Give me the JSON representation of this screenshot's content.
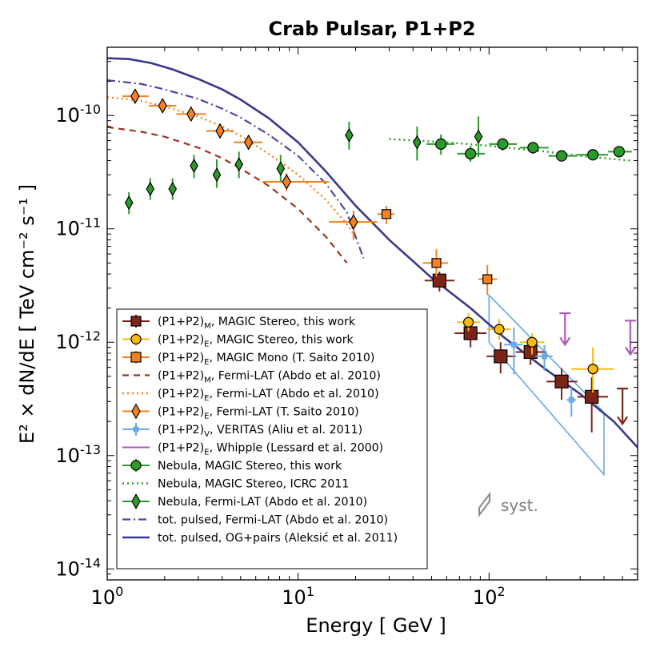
{
  "chart_data": {
    "type": "scatter",
    "title": "Crab Pulsar, P1+P2",
    "xlabel": "Energy [ GeV ]",
    "ylabel": "E² × dN/dE [ TeV cm⁻² s⁻¹ ]",
    "xscale": "log",
    "yscale": "log",
    "xlim": [
      1,
      600
    ],
    "ylim": [
      8e-15,
      4e-10
    ],
    "x_ticks": [
      {
        "value": 1,
        "base": "10",
        "exp": "0"
      },
      {
        "value": 10,
        "base": "10",
        "exp": "1"
      },
      {
        "value": 100,
        "base": "10",
        "exp": "2"
      }
    ],
    "y_ticks": [
      {
        "value": 1e-14,
        "base": "10",
        "exp": "-14"
      },
      {
        "value": 1e-13,
        "base": "10",
        "exp": "-13"
      },
      {
        "value": 1e-12,
        "base": "10",
        "exp": "-12"
      },
      {
        "value": 1e-11,
        "base": "10",
        "exp": "-11"
      },
      {
        "value": 1e-10,
        "base": "10",
        "exp": "-10"
      }
    ],
    "syst_label": "syst.",
    "series": [
      {
        "name": "(P1+P2)_M, MAGIC Stereo, this work",
        "label_main": "(P1+P2)",
        "label_sub": "M",
        "label_rest": ", MAGIC Stereo, this work",
        "kind": "points",
        "marker": "square",
        "color": "#7b2418",
        "size": 16,
        "points": [
          {
            "x": 55,
            "y": 3.5e-12,
            "xlo": 46,
            "xhi": 66,
            "ylo": 2.8e-12,
            "yhi": 4.2e-12
          },
          {
            "x": 80,
            "y": 1.2e-12,
            "xlo": 66,
            "xhi": 97,
            "ylo": 9e-13,
            "yhi": 1.55e-12
          },
          {
            "x": 115,
            "y": 7.5e-13,
            "xlo": 97,
            "xhi": 138,
            "ylo": 5.3e-13,
            "yhi": 1e-12
          },
          {
            "x": 165,
            "y": 8.2e-13,
            "xlo": 138,
            "xhi": 200,
            "ylo": 6.3e-13,
            "yhi": 1.05e-12
          },
          {
            "x": 240,
            "y": 4.5e-13,
            "xlo": 200,
            "xhi": 290,
            "ylo": 3.1e-13,
            "yhi": 5.9e-13
          },
          {
            "x": 345,
            "y": 3.3e-13,
            "xlo": 290,
            "xhi": 420,
            "ylo": 1.6e-13,
            "yhi": 4.9e-13
          }
        ],
        "upper_limits": [
          {
            "x": 500,
            "y": 3.9e-13,
            "y_arrow": 1.9e-13
          }
        ]
      },
      {
        "name": "(P1+P2)_E, MAGIC Stereo, this work",
        "label_main": "(P1+P2)",
        "label_sub": "E",
        "label_rest": ", MAGIC Stereo, this work",
        "kind": "points",
        "marker": "circle",
        "color": "#f7ba13",
        "size": 12,
        "points": [
          {
            "x": 78,
            "y": 1.5e-12,
            "xlo": 68,
            "xhi": 90,
            "ylo": 1.25e-12,
            "yhi": 1.8e-12
          },
          {
            "x": 113,
            "y": 1.3e-12,
            "xlo": 98,
            "xhi": 130,
            "ylo": 1.05e-12,
            "yhi": 1.6e-12
          },
          {
            "x": 168,
            "y": 1e-12,
            "xlo": 145,
            "xhi": 195,
            "ylo": 7.8e-13,
            "yhi": 1.2e-12
          },
          {
            "x": 350,
            "y": 5.8e-13,
            "xlo": 270,
            "xhi": 450,
            "ylo": 3.6e-13,
            "yhi": 9e-13
          }
        ]
      },
      {
        "name": "(P1+P2)_E, MAGIC Mono (T. Saito 2010)",
        "label_main": "(P1+P2)",
        "label_sub": "E",
        "label_rest": ", MAGIC Mono (T. Saito 2010)",
        "kind": "points",
        "marker": "square",
        "color": "#f5821f",
        "size": 11,
        "points": [
          {
            "x": 29,
            "y": 1.35e-11,
            "xlo": 26,
            "xhi": 32,
            "ylo": 1.1e-11,
            "yhi": 1.6e-11
          },
          {
            "x": 53,
            "y": 5e-12,
            "xlo": 45,
            "xhi": 61,
            "ylo": 3.8e-12,
            "yhi": 6.6e-12
          },
          {
            "x": 98,
            "y": 3.6e-12,
            "xlo": 88,
            "xhi": 110,
            "ylo": 2.6e-12,
            "yhi": 4.8e-12
          }
        ]
      },
      {
        "name": "(P1+P2)_M, Fermi-LAT (Abdo et al. 2010)",
        "label_main": "(P1+P2)",
        "label_sub": "M",
        "label_rest": ", Fermi-LAT (Abdo et al. 2010)",
        "kind": "line",
        "dash": "8,6",
        "color": "#9b3520",
        "width": 2.2,
        "points": [
          {
            "x": 1.0,
            "y": 7.9e-11
          },
          {
            "x": 1.5,
            "y": 7.2e-11
          },
          {
            "x": 2.0,
            "y": 6.5e-11
          },
          {
            "x": 3.0,
            "y": 5.2e-11
          },
          {
            "x": 4.0,
            "y": 4.2e-11
          },
          {
            "x": 5.0,
            "y": 3.4e-11
          },
          {
            "x": 7.0,
            "y": 2.4e-11
          },
          {
            "x": 10.0,
            "y": 1.5e-11
          },
          {
            "x": 14.0,
            "y": 8.5e-12
          },
          {
            "x": 18.0,
            "y": 5e-12
          }
        ]
      },
      {
        "name": "(P1+P2)_E, Fermi-LAT (Abdo et al. 2010)",
        "label_main": "(P1+P2)",
        "label_sub": "E",
        "label_rest": ", Fermi-LAT (Abdo et al. 2010)",
        "kind": "line",
        "dash": "2,4",
        "color": "#f5821f",
        "width": 2.4,
        "points": [
          {
            "x": 1.0,
            "y": 1.45e-10
          },
          {
            "x": 1.5,
            "y": 1.35e-10
          },
          {
            "x": 2.0,
            "y": 1.2e-10
          },
          {
            "x": 3.0,
            "y": 9.8e-11
          },
          {
            "x": 4.0,
            "y": 8e-11
          },
          {
            "x": 5.0,
            "y": 6.6e-11
          },
          {
            "x": 7.0,
            "y": 4.6e-11
          },
          {
            "x": 10.0,
            "y": 3e-11
          },
          {
            "x": 14.0,
            "y": 1.8e-11
          },
          {
            "x": 18.0,
            "y": 1.1e-11
          },
          {
            "x": 20.0,
            "y": 8.5e-12
          }
        ]
      },
      {
        "name": "(P1+P2)_E, Fermi-LAT (T. Saito 2010)",
        "label_main": "(P1+P2)",
        "label_sub": "E",
        "label_rest": ", Fermi-LAT (T. Saito 2010)",
        "kind": "points",
        "marker": "diamond",
        "color": "#f5821f",
        "size": 12,
        "points": [
          {
            "x": 1.4,
            "y": 1.48e-10,
            "xlo": 1.2,
            "xhi": 1.65,
            "ylo": 1.28e-10,
            "yhi": 1.7e-10
          },
          {
            "x": 1.95,
            "y": 1.22e-10,
            "xlo": 1.65,
            "xhi": 2.3,
            "ylo": 1.07e-10,
            "yhi": 1.38e-10
          },
          {
            "x": 2.75,
            "y": 1.03e-10,
            "xlo": 2.3,
            "xhi": 3.3,
            "ylo": 9e-11,
            "yhi": 1.17e-10
          },
          {
            "x": 3.9,
            "y": 7.3e-11,
            "xlo": 3.3,
            "xhi": 4.6,
            "ylo": 6.3e-11,
            "yhi": 8.4e-11
          },
          {
            "x": 5.5,
            "y": 5.8e-11,
            "xlo": 4.6,
            "xhi": 6.5,
            "ylo": 5e-11,
            "yhi": 6.7e-11
          },
          {
            "x": 8.7,
            "y": 2.6e-11,
            "xlo": 6.5,
            "xhi": 14.5,
            "ylo": 2.15e-11,
            "yhi": 3.1e-11
          },
          {
            "x": 19.5,
            "y": 1.15e-11,
            "xlo": 14.5,
            "xhi": 26,
            "ylo": 8e-12,
            "yhi": 1.45e-11
          }
        ]
      },
      {
        "name": "(P1+P2)_V, VERITAS (Aliu et al. 2011)",
        "label_main": "(P1+P2)",
        "label_sub": "V",
        "label_rest": ", VERITAS (Aliu et al. 2011)",
        "kind": "points",
        "marker": "smallsquare",
        "color": "#6aa8e8",
        "size": 7,
        "points": [
          {
            "x": 135,
            "y": 9.5e-13,
            "xlo": 120,
            "xhi": 150,
            "ylo": 5.2e-13,
            "yhi": 1.35e-12
          },
          {
            "x": 195,
            "y": 7.5e-13,
            "xlo": 175,
            "xhi": 215,
            "ylo": 5.6e-13,
            "yhi": 9.4e-13
          },
          {
            "x": 270,
            "y": 3.1e-13,
            "xlo": 255,
            "xhi": 285,
            "ylo": 2.2e-13,
            "yhi": 4e-13
          }
        ],
        "band": [
          {
            "x": 100,
            "y": 2.6e-12
          },
          {
            "x": 400,
            "y": 2.4e-13
          },
          {
            "x": 400,
            "y": 6.8e-14
          },
          {
            "x": 100,
            "y": 1e-12
          }
        ]
      },
      {
        "name": "(P1+P2)_E, Whipple (Lessard et al. 2000)",
        "label_main": "(P1+P2)",
        "label_sub": "E",
        "label_rest": ", Whipple (Lessard et al. 2000)",
        "kind": "limits",
        "color": "#b05ab8",
        "upper_limits": [
          {
            "x": 250,
            "y": 1.8e-12,
            "y_arrow": 9.5e-13
          },
          {
            "x": 550,
            "y": 1.55e-12,
            "y_arrow": 7.8e-13
          }
        ]
      },
      {
        "name": "Nebula, MAGIC Stereo, this work",
        "label_main": "Nebula, MAGIC Stereo, this work",
        "label_sub": "",
        "label_rest": "",
        "kind": "points",
        "marker": "circle",
        "color": "#2b9a2b",
        "size": 13,
        "points": [
          {
            "x": 56,
            "y": 5.6e-11,
            "xlo": 47,
            "xhi": 66,
            "ylo": 4.5e-11,
            "yhi": 6.8e-11
          },
          {
            "x": 80,
            "y": 4.6e-11,
            "xlo": 68,
            "xhi": 95,
            "ylo": 3.9e-11,
            "yhi": 5.4e-11
          },
          {
            "x": 118,
            "y": 5.6e-11,
            "xlo": 100,
            "xhi": 140,
            "ylo": 4.9e-11,
            "yhi": 6.3e-11
          },
          {
            "x": 170,
            "y": 5.2e-11,
            "xlo": 145,
            "xhi": 205,
            "ylo": 4.6e-11,
            "yhi": 5.8e-11
          },
          {
            "x": 240,
            "y": 4.4e-11,
            "xlo": 205,
            "xhi": 290,
            "ylo": 4e-11,
            "yhi": 4.9e-11
          },
          {
            "x": 350,
            "y": 4.5e-11,
            "xlo": 290,
            "xhi": 420,
            "ylo": 4.1e-11,
            "yhi": 4.9e-11
          },
          {
            "x": 480,
            "y": 4.8e-11,
            "xlo": 420,
            "xhi": 560,
            "ylo": 4.4e-11,
            "yhi": 5.2e-11
          }
        ]
      },
      {
        "name": "Nebula, MAGIC Stereo, ICRC 2011",
        "label_main": "Nebula, MAGIC Stereo, ICRC 2011",
        "label_sub": "",
        "label_rest": "",
        "kind": "line",
        "dash": "2,4",
        "color": "#2b9a2b",
        "width": 2.4,
        "points": [
          {
            "x": 30,
            "y": 6.2e-11
          },
          {
            "x": 60,
            "y": 5.8e-11
          },
          {
            "x": 100,
            "y": 5.4e-11
          },
          {
            "x": 200,
            "y": 4.8e-11
          },
          {
            "x": 300,
            "y": 4.4e-11
          },
          {
            "x": 550,
            "y": 4e-11
          }
        ]
      },
      {
        "name": "Nebula, Fermi-LAT (Abdo et al. 2010)",
        "label_main": "Nebula, Fermi-LAT (Abdo et al. 2010)",
        "label_sub": "",
        "label_rest": "",
        "kind": "points",
        "marker": "diamond",
        "color": "#2b9a2b",
        "size": 11,
        "points": [
          {
            "x": 1.3,
            "y": 1.7e-11,
            "ylo": 1.35e-11,
            "yhi": 2.1e-11
          },
          {
            "x": 1.68,
            "y": 2.25e-11,
            "ylo": 1.8e-11,
            "yhi": 2.8e-11
          },
          {
            "x": 2.2,
            "y": 2.25e-11,
            "ylo": 1.8e-11,
            "yhi": 2.8e-11
          },
          {
            "x": 2.85,
            "y": 3.6e-11,
            "ylo": 2.8e-11,
            "yhi": 4.5e-11
          },
          {
            "x": 3.75,
            "y": 3e-11,
            "ylo": 2.3e-11,
            "yhi": 4.1e-11
          },
          {
            "x": 4.9,
            "y": 3.7e-11,
            "ylo": 2.8e-11,
            "yhi": 4.8e-11
          },
          {
            "x": 8.1,
            "y": 3.4e-11,
            "ylo": 2.6e-11,
            "yhi": 4.5e-11
          },
          {
            "x": 18.5,
            "y": 6.7e-11,
            "ylo": 5e-11,
            "yhi": 8.8e-11
          },
          {
            "x": 42,
            "y": 5.8e-11,
            "ylo": 4e-11,
            "yhi": 8e-11
          },
          {
            "x": 88,
            "y": 6.5e-11,
            "ylo": 4.3e-11,
            "yhi": 9.8e-11
          }
        ]
      },
      {
        "name": "tot. pulsed, Fermi-LAT (Abdo et al. 2010)",
        "label_main": "tot. pulsed, Fermi-LAT (Abdo et al. 2010)",
        "label_sub": "",
        "label_rest": "",
        "kind": "line",
        "dash": "10,4,2,4",
        "color": "#4a4aa0",
        "width": 2.2,
        "points": [
          {
            "x": 1.0,
            "y": 2.05e-10
          },
          {
            "x": 1.5,
            "y": 1.9e-10
          },
          {
            "x": 2.0,
            "y": 1.7e-10
          },
          {
            "x": 3.0,
            "y": 1.4e-10
          },
          {
            "x": 4.0,
            "y": 1.15e-10
          },
          {
            "x": 5.0,
            "y": 9.6e-11
          },
          {
            "x": 7.0,
            "y": 6.8e-11
          },
          {
            "x": 10.0,
            "y": 4.4e-11
          },
          {
            "x": 14.0,
            "y": 2.5e-11
          },
          {
            "x": 18.0,
            "y": 1.4e-11
          },
          {
            "x": 22.0,
            "y": 5.5e-12
          }
        ]
      },
      {
        "name": "tot. pulsed, OG+pairs (Aleksić et al. 2011)",
        "label_main": "tot. pulsed, OG+pairs (Aleksić et al. 2011)",
        "label_sub": "",
        "label_rest": "",
        "kind": "line",
        "dash": "",
        "color": "#3a3a8c",
        "width": 2.6,
        "points": [
          {
            "x": 1.0,
            "y": 3.2e-10
          },
          {
            "x": 1.3,
            "y": 3.15e-10
          },
          {
            "x": 1.7,
            "y": 2.9e-10
          },
          {
            "x": 2.2,
            "y": 2.55e-10
          },
          {
            "x": 3.0,
            "y": 2.1e-10
          },
          {
            "x": 4.0,
            "y": 1.7e-10
          },
          {
            "x": 5.0,
            "y": 1.38e-10
          },
          {
            "x": 7.0,
            "y": 9.5e-11
          },
          {
            "x": 10.0,
            "y": 5.8e-11
          },
          {
            "x": 14.0,
            "y": 3.2e-11
          },
          {
            "x": 20.0,
            "y": 1.6e-11
          },
          {
            "x": 30.0,
            "y": 8e-12
          },
          {
            "x": 50.0,
            "y": 3.7e-12
          },
          {
            "x": 80.0,
            "y": 2e-12
          },
          {
            "x": 120.0,
            "y": 1.1e-12
          },
          {
            "x": 200.0,
            "y": 5.7e-13
          },
          {
            "x": 300.0,
            "y": 3.5e-13
          },
          {
            "x": 450.0,
            "y": 2e-13
          },
          {
            "x": 600.0,
            "y": 1.18e-13
          }
        ]
      }
    ]
  }
}
